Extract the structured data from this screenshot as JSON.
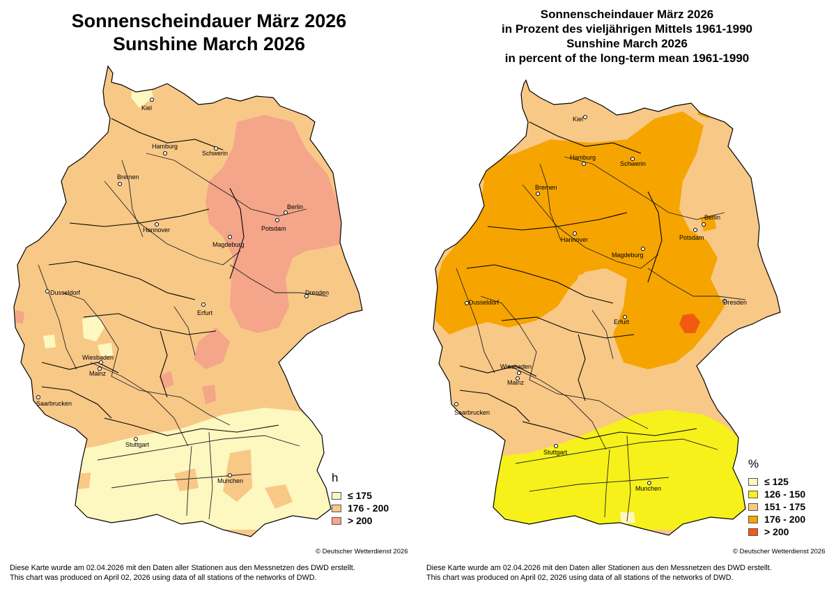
{
  "left": {
    "title_line1": "Sonnenscheindauer März 2026",
    "title_line2": "Sunshine March 2026",
    "legend_unit": "h",
    "legend": [
      {
        "label": "≤  175",
        "color": "#fdf7c0"
      },
      {
        "label": "176 - 200",
        "color": "#f8c887"
      },
      {
        "label": "> 200",
        "color": "#f4a58a"
      }
    ],
    "copyright": "© Deutscher Wetterdienst 2026",
    "footer_de": "Diese Karte wurde am 02.04.2026 mit den Daten aller Stationen aus den Messnetzen des DWD erstellt.",
    "footer_en": "This chart was produced on April 02, 2026 using data of all stations of the networks of DWD."
  },
  "right": {
    "title_line1": "Sonnenscheindauer März 2026",
    "title_line2": "in Prozent des vieljährigen Mittels 1961-1990",
    "title_line3": "Sunshine March 2026",
    "title_line4": "in percent of the long-term mean 1961-1990",
    "legend_unit": "%",
    "legend": [
      {
        "label": "≤  125",
        "color": "#fdf7c0"
      },
      {
        "label": "126 - 150",
        "color": "#f6f11a"
      },
      {
        "label": "151 - 175",
        "color": "#f8c887"
      },
      {
        "label": "176 - 200",
        "color": "#f6a400"
      },
      {
        "label": "> 200",
        "color": "#f25a12"
      }
    ],
    "copyright": "© Deutscher Wetterdienst 2026",
    "footer_de": "Diese Karte wurde am 02.04.2026 mit den Daten aller Stationen aus den Messnetzen des DWD erstellt.",
    "footer_en": "This chart was produced on April 02, 2026 using data of all stations of the networks of DWD."
  },
  "cities": [
    "Kiel",
    "Hamburg",
    "Schwerin",
    "Bremen",
    "Berlin",
    "Potsdam",
    "Hannover",
    "Magdeburg",
    "Dusseldorf",
    "Dresden",
    "Erfurt",
    "Wiesbaden",
    "Mainz",
    "Saarbrucken",
    "Stuttgart",
    "Munchen"
  ]
}
